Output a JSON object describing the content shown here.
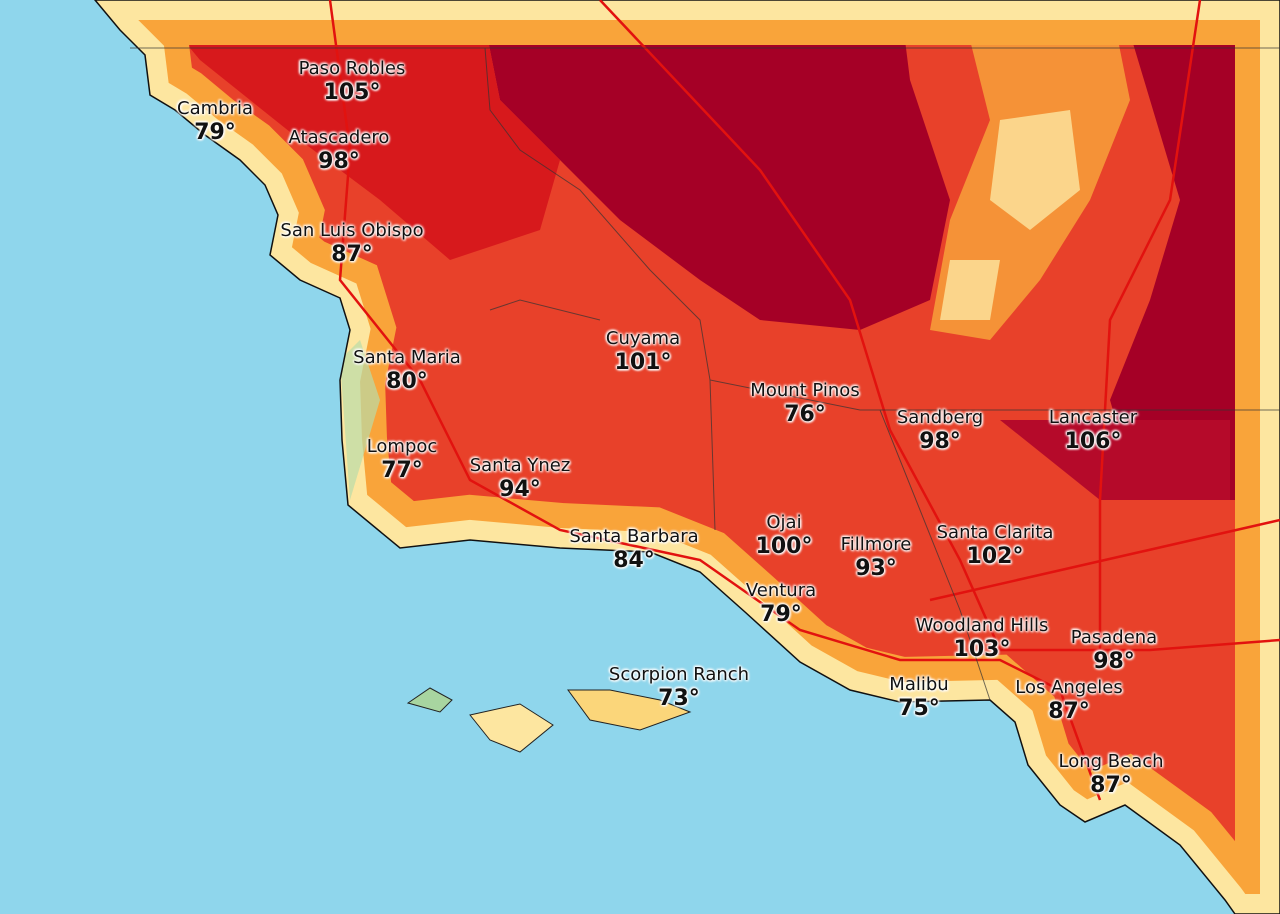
{
  "map": {
    "ocean_color": "#8fd6ec",
    "temperature_colors": {
      "very_hot": "#a50026",
      "hot": "#d7191c",
      "warm": "#f0582a",
      "mild": "#f9a43a",
      "cool": "#fde6a0",
      "coolest": "#b9dba8"
    }
  },
  "cities": [
    {
      "name": "Paso Robles",
      "temp": "105°"
    },
    {
      "name": "Cambria",
      "temp": "79°"
    },
    {
      "name": "Atascadero",
      "temp": "98°"
    },
    {
      "name": "San Luis Obispo",
      "temp": "87°"
    },
    {
      "name": "Santa Maria",
      "temp": "80°"
    },
    {
      "name": "Cuyama",
      "temp": "101°"
    },
    {
      "name": "Mount Pinos",
      "temp": "76°"
    },
    {
      "name": "Sandberg",
      "temp": "98°"
    },
    {
      "name": "Lancaster",
      "temp": "106°"
    },
    {
      "name": "Lompoc",
      "temp": "77°"
    },
    {
      "name": "Santa Ynez",
      "temp": "94°"
    },
    {
      "name": "Santa Barbara",
      "temp": "84°"
    },
    {
      "name": "Ojai",
      "temp": "100°"
    },
    {
      "name": "Fillmore",
      "temp": "93°"
    },
    {
      "name": "Santa Clarita",
      "temp": "102°"
    },
    {
      "name": "Ventura",
      "temp": "79°"
    },
    {
      "name": "Woodland Hills",
      "temp": "103°"
    },
    {
      "name": "Pasadena",
      "temp": "98°"
    },
    {
      "name": "Scorpion Ranch",
      "temp": "73°"
    },
    {
      "name": "Malibu",
      "temp": "75°"
    },
    {
      "name": "Los Angeles",
      "temp": "87°"
    },
    {
      "name": "Long Beach",
      "temp": "87°"
    }
  ]
}
